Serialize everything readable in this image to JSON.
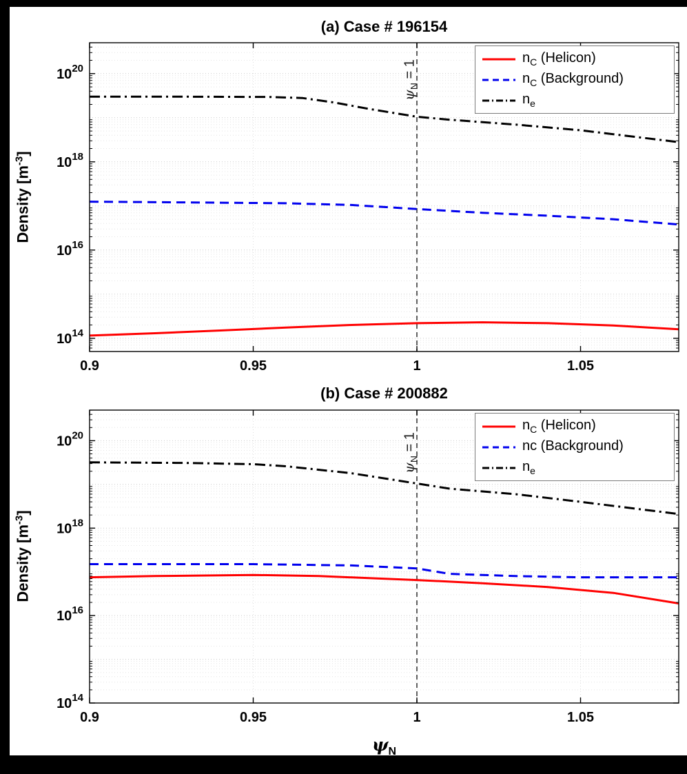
{
  "figure": {
    "background": "#000000",
    "paper": "#ffffff",
    "xlabel_parts": {
      "pre": "ψ",
      "sub": "N"
    }
  },
  "chart_data": [
    {
      "type": "line",
      "title": "(a) Case # 196154",
      "ylabel_parts": {
        "pre": "Density [m",
        "sup": "-3",
        "post": "]"
      },
      "xlim": [
        0.9,
        1.08
      ],
      "ylim_log10": [
        13.7,
        20.7
      ],
      "xticks": [
        "0.9",
        "0.95",
        "1",
        "1.05"
      ],
      "xtick_values": [
        0.9,
        0.95,
        1.0,
        1.05
      ],
      "ytick_exponents": [
        14,
        16,
        18,
        20
      ],
      "grid": "on",
      "legend_position": "top-right",
      "annotation": {
        "x": 1.0,
        "text_parts": {
          "pre": "ψ",
          "sub": "N",
          "post": " = 1"
        }
      },
      "series": [
        {
          "name_parts": {
            "pre": "n",
            "sub": "C",
            "post": " (Helicon)"
          },
          "color": "#ff0000",
          "dash": "solid",
          "width": 3,
          "x": [
            0.9,
            0.92,
            0.94,
            0.96,
            0.98,
            1.0,
            1.02,
            1.04,
            1.06,
            1.08
          ],
          "y": [
            115000000000000.0,
            130000000000000.0,
            150000000000000.0,
            175000000000000.0,
            200000000000000.0,
            220000000000000.0,
            230000000000000.0,
            220000000000000.0,
            195000000000000.0,
            160000000000000.0
          ]
        },
        {
          "name_parts": {
            "pre": "n",
            "sub": "C",
            "post": " (Background)"
          },
          "color": "#0000ee",
          "dash": "dashed",
          "width": 3,
          "x": [
            0.9,
            0.93,
            0.96,
            0.98,
            1.0,
            1.02,
            1.04,
            1.06,
            1.08
          ],
          "y": [
            1.25e+17,
            1.2e+17,
            1.15e+17,
            1.05e+17,
            8.5e+16,
            7e+16,
            6e+16,
            5e+16,
            3.8e+16
          ]
        },
        {
          "name_parts": {
            "pre": "n",
            "sub": "e",
            "post": ""
          },
          "color": "#000000",
          "dash": "dashdot",
          "width": 3,
          "x": [
            0.9,
            0.93,
            0.955,
            0.965,
            0.975,
            0.985,
            1.0,
            1.01,
            1.03,
            1.05,
            1.08
          ],
          "y": [
            3e+19,
            3e+19,
            2.95e+19,
            2.8e+19,
            2.2e+19,
            1.6e+19,
            1.05e+19,
            9e+18,
            7e+18,
            5.2e+18,
            2.8e+18
          ]
        }
      ]
    },
    {
      "type": "line",
      "title": "(b) Case # 200882",
      "ylabel_parts": {
        "pre": "Density [m",
        "sup": "-3",
        "post": "]"
      },
      "xlim": [
        0.9,
        1.08
      ],
      "ylim_log10": [
        14,
        20.7
      ],
      "xticks": [
        "0.9",
        "0.95",
        "1",
        "1.05"
      ],
      "xtick_values": [
        0.9,
        0.95,
        1.0,
        1.05
      ],
      "ytick_exponents": [
        14,
        16,
        18,
        20
      ],
      "grid": "on",
      "legend_position": "top-right",
      "annotation": {
        "x": 1.0,
        "text_parts": {
          "pre": "ψ",
          "sub": "N",
          "post": " = 1"
        }
      },
      "series": [
        {
          "name_parts": {
            "pre": "n",
            "sub": "C",
            "post": " (Helicon)"
          },
          "color": "#ff0000",
          "dash": "solid",
          "width": 3,
          "x": [
            0.9,
            0.92,
            0.95,
            0.97,
            1.0,
            1.02,
            1.04,
            1.06,
            1.08
          ],
          "y": [
            7.5e+16,
            8e+16,
            8.5e+16,
            8e+16,
            6.5e+16,
            5.5e+16,
            4.5e+16,
            3.3e+16,
            1.9e+16
          ]
        },
        {
          "name_parts": {
            "pre": "nc",
            "sub": "",
            "post": " (Background)"
          },
          "color": "#0000ee",
          "dash": "dashed",
          "width": 3,
          "x": [
            0.9,
            0.95,
            0.98,
            1.0,
            1.01,
            1.03,
            1.05,
            1.08
          ],
          "y": [
            1.5e+17,
            1.5e+17,
            1.4e+17,
            1.2e+17,
            9e+16,
            8e+16,
            7.5e+16,
            7.5e+16
          ]
        },
        {
          "name_parts": {
            "pre": "n",
            "sub": "e",
            "post": ""
          },
          "color": "#000000",
          "dash": "dashdot",
          "width": 3,
          "x": [
            0.9,
            0.93,
            0.95,
            0.96,
            0.98,
            1.0,
            1.01,
            1.03,
            1.05,
            1.08
          ],
          "y": [
            3.2e+19,
            3.1e+19,
            2.9e+19,
            2.6e+19,
            1.8e+19,
            1.05e+19,
            8e+18,
            6e+18,
            4e+18,
            2.1e+18
          ]
        }
      ]
    }
  ]
}
